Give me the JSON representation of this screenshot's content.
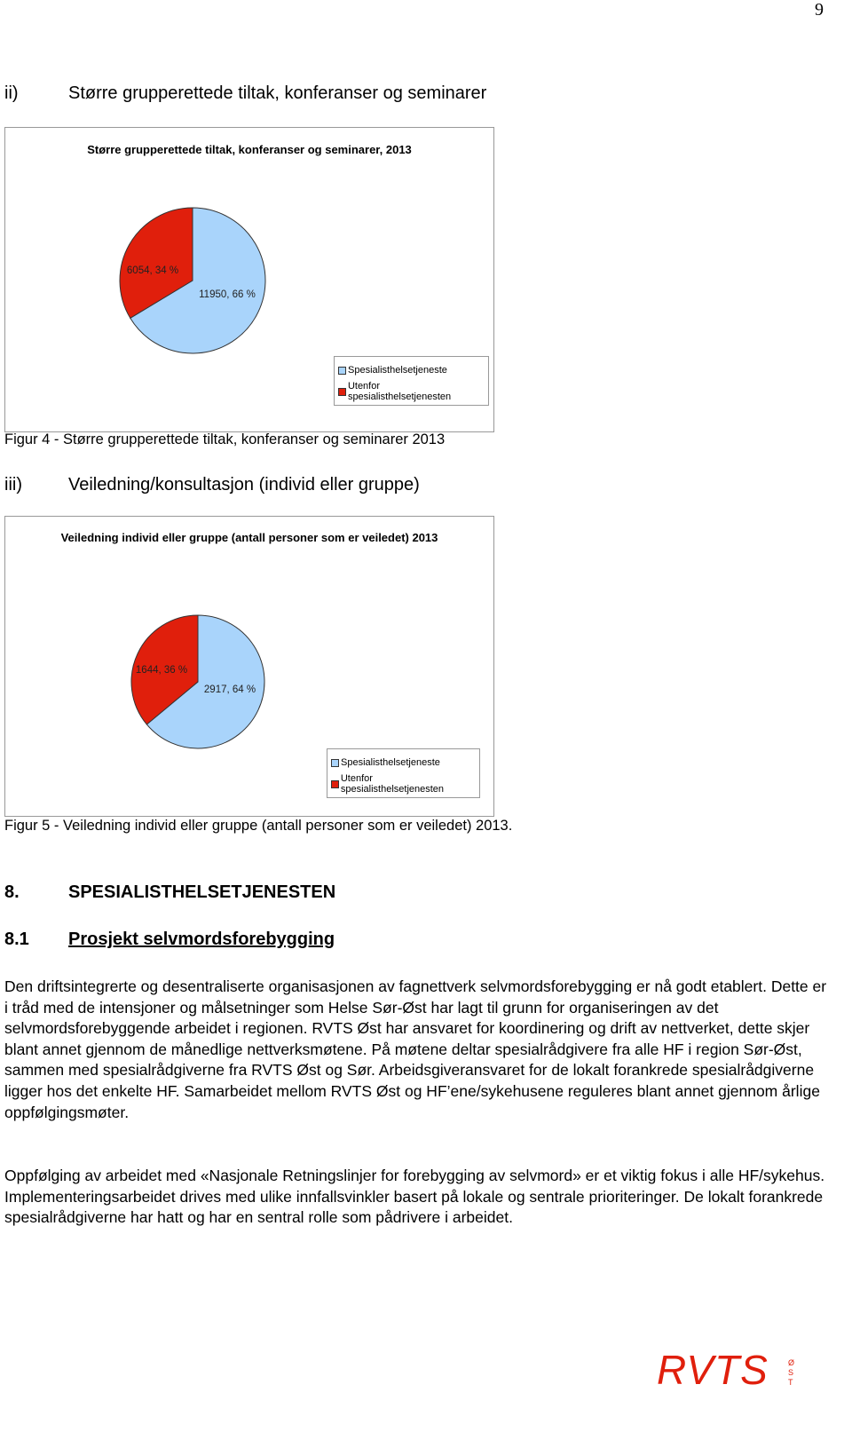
{
  "page_number": "9",
  "sections": [
    {
      "number": "ii)",
      "heading": "Større grupperettede tiltak, konferanser og seminarer"
    },
    {
      "number": "iii)",
      "heading": "Veiledning/konsultasjon (individ eller gruppe)"
    }
  ],
  "figures": [
    {
      "chart": {
        "type": "pie",
        "title": "Større grupperettede tiltak, konferanser og seminarer, 2013",
        "categories": [
          "Spesialisthelsetjeneste",
          "Utenfor spesialisthelsetjenesten"
        ],
        "values": [
          11950,
          6054
        ],
        "value_labels": [
          "11950, 66 %",
          "6054, 34 %"
        ],
        "colors": [
          "#a9d4fb",
          "#e01f0c"
        ]
      },
      "caption": "Figur 4 - Større grupperettede tiltak, konferanser og seminarer 2013"
    },
    {
      "chart": {
        "type": "pie",
        "title": "Veiledning individ eller gruppe (antall personer som er veiledet) 2013",
        "categories": [
          "Spesialisthelsetjeneste",
          "Utenfor spesialisthelsetjenesten"
        ],
        "values": [
          2917,
          1644
        ],
        "value_labels": [
          "2917, 64 %",
          "1644, 36 %"
        ],
        "colors": [
          "#a9d4fb",
          "#e01f0c"
        ]
      },
      "caption": "Figur 5 - Veiledning individ eller gruppe (antall personer som er veiledet) 2013."
    }
  ],
  "chapter": {
    "number": "8.",
    "heading": "SPESIALISTHELSETJENESTEN"
  },
  "subchapter": {
    "number": "8.1",
    "heading": "Prosjekt selvmordsforebygging"
  },
  "paragraphs": [
    "Den driftsintegrerte og desentraliserte organisasjonen av fagnettverk selvmordsforebygging er nå godt etablert. Dette er i tråd med de intensjoner og målsetninger som Helse Sør-Øst har lagt til grunn for organiseringen av det selvmordsforebyggende arbeidet i regionen. RVTS Øst har ansvaret for koordinering og drift av nettverket, dette skjer blant annet gjennom de månedlige nettverksmøtene. På møtene deltar spesialrådgivere fra alle HF i region Sør-Øst, sammen med spesialrådgiverne fra RVTS Øst og Sør. Arbeidsgiveransvaret for de lokalt forankrede spesialrådgiverne ligger hos det enkelte HF. Samarbeidet mellom RVTS Øst og HF’ene/sykehusene reguleres blant annet gjennom årlige oppfølgingsmøter.",
    "Oppfølging av arbeidet med «Nasjonale Retningslinjer for forebygging av selvmord» er et viktig fokus i alle HF/sykehus. Implementeringsarbeidet drives med ulike innfallsvinkler basert på lokale og sentrale prioriteringer. De lokalt forankrede spesialrådgiverne har hatt og har en sentral rolle som pådrivere i arbeidet."
  ],
  "logo": {
    "text": "RVTS",
    "sub": "ØST"
  }
}
